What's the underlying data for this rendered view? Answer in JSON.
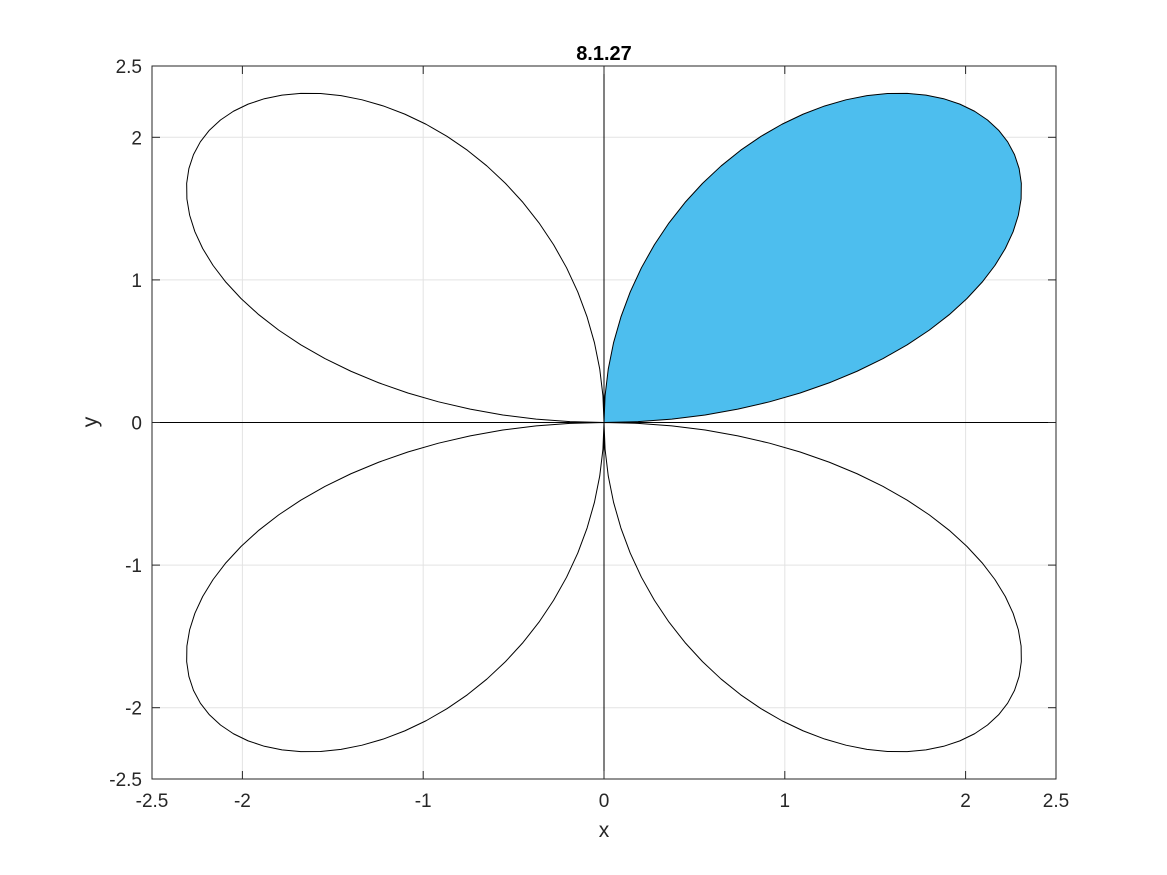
{
  "chart_data": {
    "type": "line",
    "title": "8.1.27",
    "xlabel": "x",
    "ylabel": "y",
    "xlim": [
      -2.5,
      2.5
    ],
    "ylim": [
      -2.5,
      2.5
    ],
    "xticks": [
      -2.5,
      -2,
      -1,
      0,
      1,
      2,
      2.5
    ],
    "yticks": [
      -2.5,
      -2,
      -1,
      0,
      1,
      2,
      2.5
    ],
    "xtick_labels": [
      "-2.5",
      "-2",
      "-1",
      "0",
      "1",
      "2",
      "2.5"
    ],
    "ytick_labels": [
      "-2.5",
      "-2",
      "-1",
      "0",
      "1",
      "2",
      "2.5"
    ],
    "grid": true,
    "curve": {
      "polar_equation": "r = 3 sin(2θ)",
      "amplitude": 3,
      "petals": 4,
      "line_color": "#000000"
    },
    "shaded_region": {
      "theta_range": [
        0,
        1.5708
      ],
      "fill_color": "#4DBEEE"
    }
  }
}
